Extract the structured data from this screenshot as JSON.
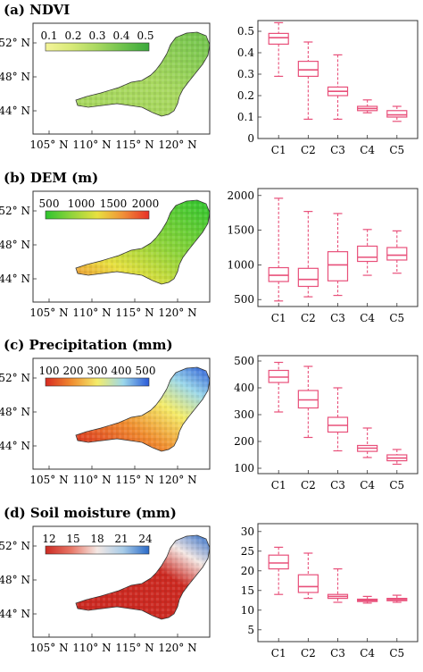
{
  "chart_data": [
    {
      "type": "map",
      "title": "(a) NDVI",
      "colorbar": {
        "ticks": [
          "0.1",
          "0.2",
          "0.3",
          "0.4",
          "0.5"
        ],
        "colors": [
          "#f4f49a",
          "#d8ea78",
          "#a8d860",
          "#6ec24c",
          "#3aa83c"
        ]
      },
      "map_color": "#9ad24e",
      "x_ticks": [
        "105° N",
        "110° N",
        "115° N",
        "120° N"
      ],
      "y_ticks": [
        "52° N",
        "48° N",
        "44° N"
      ]
    },
    {
      "type": "box",
      "categories": [
        "C1",
        "C2",
        "C3",
        "C4",
        "C5"
      ],
      "ylim": [
        0,
        0.55
      ],
      "yticks": [
        0,
        0.1,
        0.2,
        0.3,
        0.4,
        0.5
      ],
      "ytick_labels": [
        "0",
        "0.1",
        "0.2",
        "0.3",
        "0.4",
        "0.5"
      ],
      "boxes": [
        {
          "min": 0.29,
          "q1": 0.44,
          "median": 0.47,
          "q3": 0.49,
          "max": 0.54
        },
        {
          "min": 0.09,
          "q1": 0.29,
          "median": 0.32,
          "q3": 0.36,
          "max": 0.45
        },
        {
          "min": 0.09,
          "q1": 0.2,
          "median": 0.22,
          "q3": 0.24,
          "max": 0.39
        },
        {
          "min": 0.12,
          "q1": 0.13,
          "median": 0.14,
          "q3": 0.15,
          "max": 0.18
        },
        {
          "min": 0.08,
          "q1": 0.1,
          "median": 0.11,
          "q3": 0.13,
          "max": 0.15
        }
      ]
    },
    {
      "type": "map",
      "title": "(b) DEM (m)",
      "colorbar": {
        "ticks": [
          "500",
          "1000",
          "1500",
          "2000"
        ],
        "colors": [
          "#2ec42e",
          "#90d43c",
          "#e8e040",
          "#f09038",
          "#e83028"
        ]
      },
      "map_color": "#7cc83c",
      "x_ticks": [
        "105° N",
        "110° N",
        "115° N",
        "120° N"
      ],
      "y_ticks": [
        "52° N",
        "48° N",
        "44° N"
      ]
    },
    {
      "type": "box",
      "categories": [
        "C1",
        "C2",
        "C3",
        "C4",
        "C5"
      ],
      "ylim": [
        400,
        2100
      ],
      "yticks": [
        500,
        1000,
        1500,
        2000
      ],
      "ytick_labels": [
        "500",
        "1000",
        "1500",
        "2000"
      ],
      "boxes": [
        {
          "min": 480,
          "q1": 760,
          "median": 850,
          "q3": 960,
          "max": 1960
        },
        {
          "min": 540,
          "q1": 690,
          "median": 790,
          "q3": 950,
          "max": 1770
        },
        {
          "min": 560,
          "q1": 770,
          "median": 1000,
          "q3": 1190,
          "max": 1740
        },
        {
          "min": 850,
          "q1": 1050,
          "median": 1110,
          "q3": 1270,
          "max": 1510
        },
        {
          "min": 880,
          "q1": 1070,
          "median": 1140,
          "q3": 1250,
          "max": 1490
        }
      ]
    },
    {
      "type": "map",
      "title": "(c) Precipitation (mm)",
      "colorbar": {
        "ticks": [
          "100",
          "200",
          "300",
          "400",
          "500"
        ],
        "colors": [
          "#d82a20",
          "#f08c30",
          "#f4ec6a",
          "#9cd8ea",
          "#2a5ad8"
        ]
      },
      "map_color": "#f0a040",
      "x_ticks": [
        "105° N",
        "110° N",
        "115° N",
        "120° N"
      ],
      "y_ticks": [
        "52° N",
        "48° N",
        "44° N"
      ]
    },
    {
      "type": "box",
      "categories": [
        "C1",
        "C2",
        "C3",
        "C4",
        "C5"
      ],
      "ylim": [
        80,
        520
      ],
      "yticks": [
        100,
        200,
        300,
        400,
        500
      ],
      "ytick_labels": [
        "100",
        "200",
        "300",
        "400",
        "500"
      ],
      "boxes": [
        {
          "min": 310,
          "q1": 420,
          "median": 440,
          "q3": 465,
          "max": 495
        },
        {
          "min": 215,
          "q1": 325,
          "median": 355,
          "q3": 390,
          "max": 480
        },
        {
          "min": 165,
          "q1": 235,
          "median": 260,
          "q3": 290,
          "max": 400
        },
        {
          "min": 140,
          "q1": 163,
          "median": 175,
          "q3": 185,
          "max": 250
        },
        {
          "min": 115,
          "q1": 128,
          "median": 138,
          "q3": 150,
          "max": 170
        }
      ]
    },
    {
      "type": "map",
      "title": "(d) Soil moisture (mm)",
      "colorbar": {
        "ticks": [
          "12",
          "15",
          "18",
          "21",
          "24"
        ],
        "colors": [
          "#cc2a22",
          "#e87868",
          "#f4e8e4",
          "#a8cce8",
          "#2a6ac8"
        ]
      },
      "map_color": "#d83a2c",
      "x_ticks": [
        "105° N",
        "110° N",
        "115° N",
        "120° N"
      ],
      "y_ticks": [
        "52° N",
        "48° N",
        "44° N"
      ]
    },
    {
      "type": "box",
      "categories": [
        "C1",
        "C2",
        "C3",
        "C4",
        "C5"
      ],
      "ylim": [
        2,
        32
      ],
      "yticks": [
        5,
        10,
        15,
        20,
        25,
        30
      ],
      "ytick_labels": [
        "5",
        "10",
        "15",
        "20",
        "25",
        "30"
      ],
      "boxes": [
        {
          "min": 14,
          "q1": 20.5,
          "median": 22,
          "q3": 24,
          "max": 26
        },
        {
          "min": 13,
          "q1": 14.5,
          "median": 16,
          "q3": 19,
          "max": 24.5
        },
        {
          "min": 12,
          "q1": 13,
          "median": 13.5,
          "q3": 14,
          "max": 20.5
        },
        {
          "min": 11.8,
          "q1": 12.2,
          "median": 12.5,
          "q3": 12.8,
          "max": 13.5
        },
        {
          "min": 12,
          "q1": 12.4,
          "median": 12.7,
          "q3": 13,
          "max": 13.8
        }
      ]
    }
  ]
}
